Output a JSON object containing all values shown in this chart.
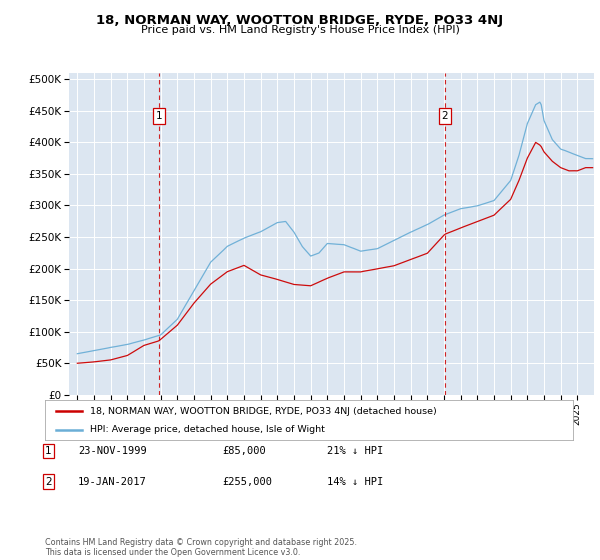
{
  "title1": "18, NORMAN WAY, WOOTTON BRIDGE, RYDE, PO33 4NJ",
  "title2": "Price paid vs. HM Land Registry's House Price Index (HPI)",
  "plot_bg_color": "#dce6f1",
  "hpi_color": "#6baed6",
  "price_color": "#cc0000",
  "dashed_color": "#cc0000",
  "legend_label1": "18, NORMAN WAY, WOOTTON BRIDGE, RYDE, PO33 4NJ (detached house)",
  "legend_label2": "HPI: Average price, detached house, Isle of Wight",
  "sale1_date": "23-NOV-1999",
  "sale1_price": "£85,000",
  "sale1_hpi": "21% ↓ HPI",
  "sale1_year": 1999.89,
  "sale1_value": 85000,
  "sale2_date": "19-JAN-2017",
  "sale2_price": "£255,000",
  "sale2_hpi": "14% ↓ HPI",
  "sale2_year": 2017.05,
  "sale2_value": 255000,
  "ylim_min": 0,
  "ylim_max": 510000,
  "yticks": [
    0,
    50000,
    100000,
    150000,
    200000,
    250000,
    300000,
    350000,
    400000,
    450000,
    500000
  ],
  "ytick_labels": [
    "£0",
    "£50K",
    "£100K",
    "£150K",
    "£200K",
    "£250K",
    "£300K",
    "£350K",
    "£400K",
    "£450K",
    "£500K"
  ],
  "xlim_min": 1994.5,
  "xlim_max": 2026.0,
  "footer": "Contains HM Land Registry data © Crown copyright and database right 2025.\nThis data is licensed under the Open Government Licence v3.0."
}
